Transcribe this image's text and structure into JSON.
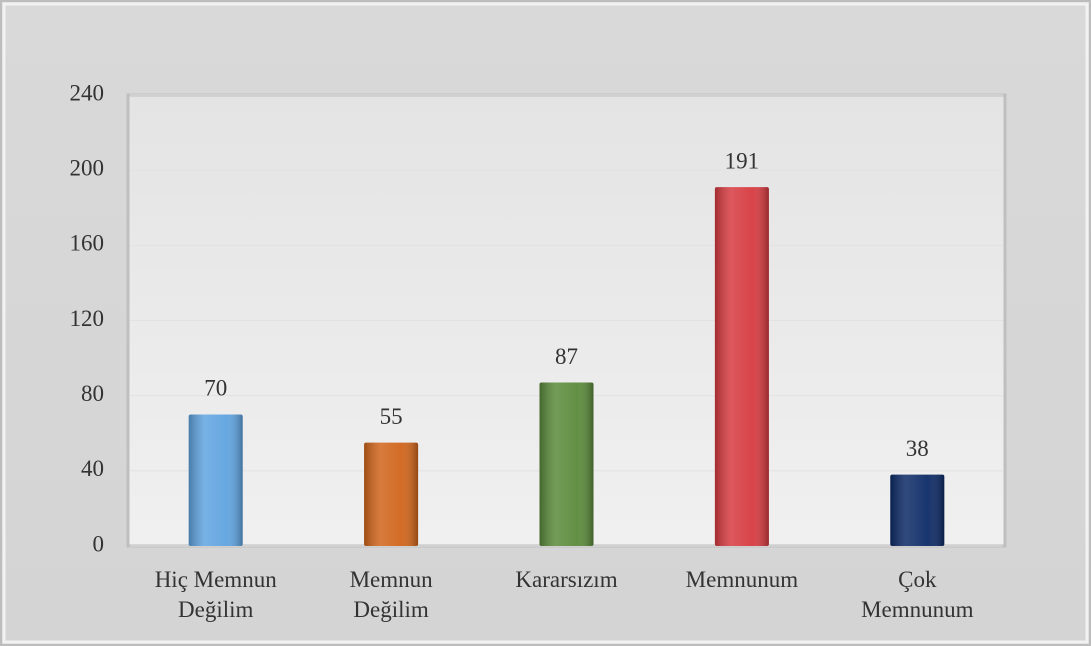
{
  "chart_data": {
    "type": "bar",
    "categories": [
      "Hiç Memnun Değilim",
      "Memnun Değilim",
      "Kararsızım",
      "Memnunum",
      "Çok Memnunum"
    ],
    "values": [
      70,
      55,
      87,
      191,
      38
    ],
    "colors": [
      "#5fa3e0",
      "#d0641a",
      "#5a8a3a",
      "#d63a3f",
      "#0c2a66"
    ],
    "ylim": [
      0,
      240
    ],
    "yticks": [
      0,
      40,
      80,
      120,
      160,
      200,
      240
    ],
    "grid": true
  }
}
